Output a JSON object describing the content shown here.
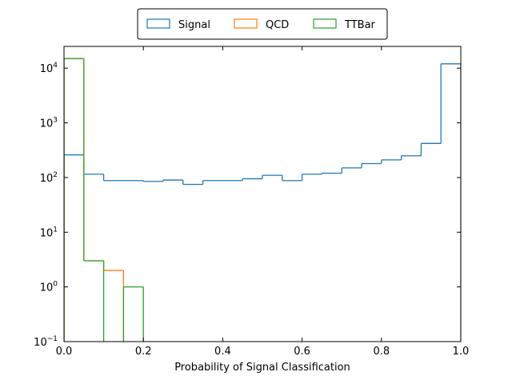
{
  "chart_data": {
    "type": "step-histogram",
    "xlabel": "Probability of Signal Classification",
    "ylabel": "",
    "title": "",
    "xlim": [
      0,
      1
    ],
    "ylim": [
      0.1,
      25000
    ],
    "yscale": "log",
    "x_ticks": [
      0.0,
      0.2,
      0.4,
      0.6,
      0.8,
      1.0
    ],
    "x_tick_labels": [
      "0.0",
      "0.2",
      "0.4",
      "0.6",
      "0.8",
      "1.0"
    ],
    "y_ticks": [
      {
        "value": 0.1,
        "base": "10",
        "exp": "−1"
      },
      {
        "value": 1,
        "base": "10",
        "exp": "0"
      },
      {
        "value": 10,
        "base": "10",
        "exp": "1"
      },
      {
        "value": 100,
        "base": "10",
        "exp": "2"
      },
      {
        "value": 1000,
        "base": "10",
        "exp": "3"
      },
      {
        "value": 10000,
        "base": "10",
        "exp": "4"
      }
    ],
    "bin_edges": [
      0.0,
      0.05,
      0.1,
      0.15,
      0.2,
      0.25,
      0.3,
      0.35,
      0.4,
      0.45,
      0.5,
      0.55,
      0.6,
      0.65,
      0.7,
      0.75,
      0.8,
      0.85,
      0.9,
      0.95,
      1.0
    ],
    "grid": false,
    "legend_position": "top-center",
    "series": [
      {
        "name": "Signal",
        "color": "#1f77b4",
        "values": [
          260,
          115,
          88,
          88,
          85,
          90,
          75,
          88,
          88,
          95,
          110,
          88,
          115,
          120,
          150,
          180,
          210,
          250,
          420,
          12000
        ]
      },
      {
        "name": "QCD",
        "color": "#ff7f0e",
        "values": [
          15000,
          3,
          2,
          0,
          0,
          0,
          0,
          0,
          0,
          0,
          0,
          0,
          0,
          0,
          0,
          0,
          0,
          0,
          0,
          0
        ]
      },
      {
        "name": "TTBar",
        "color": "#2ca02c",
        "values": [
          15000,
          3,
          0,
          1,
          0,
          0,
          0,
          0,
          0,
          0,
          0,
          0,
          0,
          0,
          0,
          0,
          0,
          0,
          0,
          0
        ]
      }
    ]
  }
}
